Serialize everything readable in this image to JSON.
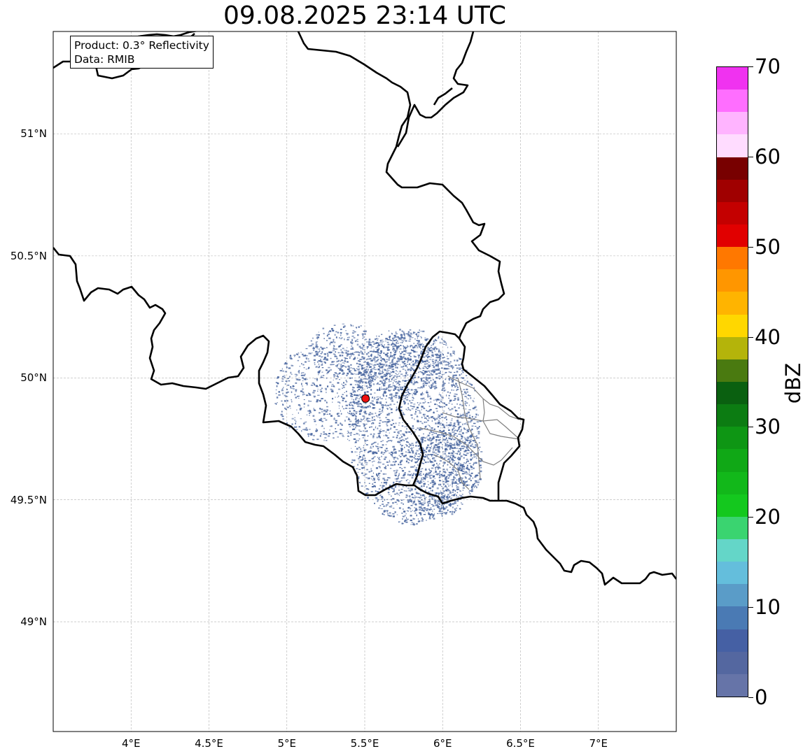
{
  "title": "09.08.2025 23:14 UTC",
  "info": {
    "product": "Product: 0.3° Reflectivity",
    "data": "Data: RMIB"
  },
  "map": {
    "lon_range": [
      3.5,
      7.5
    ],
    "lat_range": [
      48.55,
      51.42
    ],
    "lon_ticks": [
      {
        "value": 4.0,
        "label": "4°E"
      },
      {
        "value": 4.5,
        "label": "4.5°E"
      },
      {
        "value": 5.0,
        "label": "5°E"
      },
      {
        "value": 5.5,
        "label": "5.5°E"
      },
      {
        "value": 6.0,
        "label": "6°E"
      },
      {
        "value": 6.5,
        "label": "6.5°E"
      },
      {
        "value": 7.0,
        "label": "7°E"
      }
    ],
    "lat_ticks": [
      {
        "value": 51.0,
        "label": "51°N"
      },
      {
        "value": 50.5,
        "label": "50.5°N"
      },
      {
        "value": 50.0,
        "label": "50°N"
      },
      {
        "value": 49.5,
        "label": "49.5°N"
      },
      {
        "value": 49.0,
        "label": "49°N"
      }
    ],
    "grid": true,
    "radar_site": {
      "lon": 5.505,
      "lat": 49.915,
      "color": "#ee1111"
    },
    "echo_color": "#4a67a0",
    "border_color": "#000000",
    "admin_border_color": "#808080"
  },
  "colorbar": {
    "label": "dBZ",
    "min": 0,
    "max": 70,
    "ticks": [
      {
        "value": 0,
        "label": "0"
      },
      {
        "value": 10,
        "label": "10"
      },
      {
        "value": 20,
        "label": "20"
      },
      {
        "value": 30,
        "label": "30"
      },
      {
        "value": 40,
        "label": "40"
      },
      {
        "value": 50,
        "label": "50"
      },
      {
        "value": 60,
        "label": "60"
      },
      {
        "value": 70,
        "label": "70"
      }
    ],
    "colors": [
      "#6674a8",
      "#5467a0",
      "#4560a4",
      "#4a7ab4",
      "#5a9cc8",
      "#64bedc",
      "#64d6c8",
      "#3ad470",
      "#14c81e",
      "#12b81a",
      "#10a816",
      "#0e9614",
      "#0c7c12",
      "#0a6010",
      "#4a7a10",
      "#b4b40a",
      "#ffd700",
      "#ffb400",
      "#ff9600",
      "#ff7800",
      "#e10000",
      "#c40000",
      "#a00000",
      "#780000",
      "#ffdcff",
      "#ffb4ff",
      "#ff6eff",
      "#f032f0"
    ]
  }
}
